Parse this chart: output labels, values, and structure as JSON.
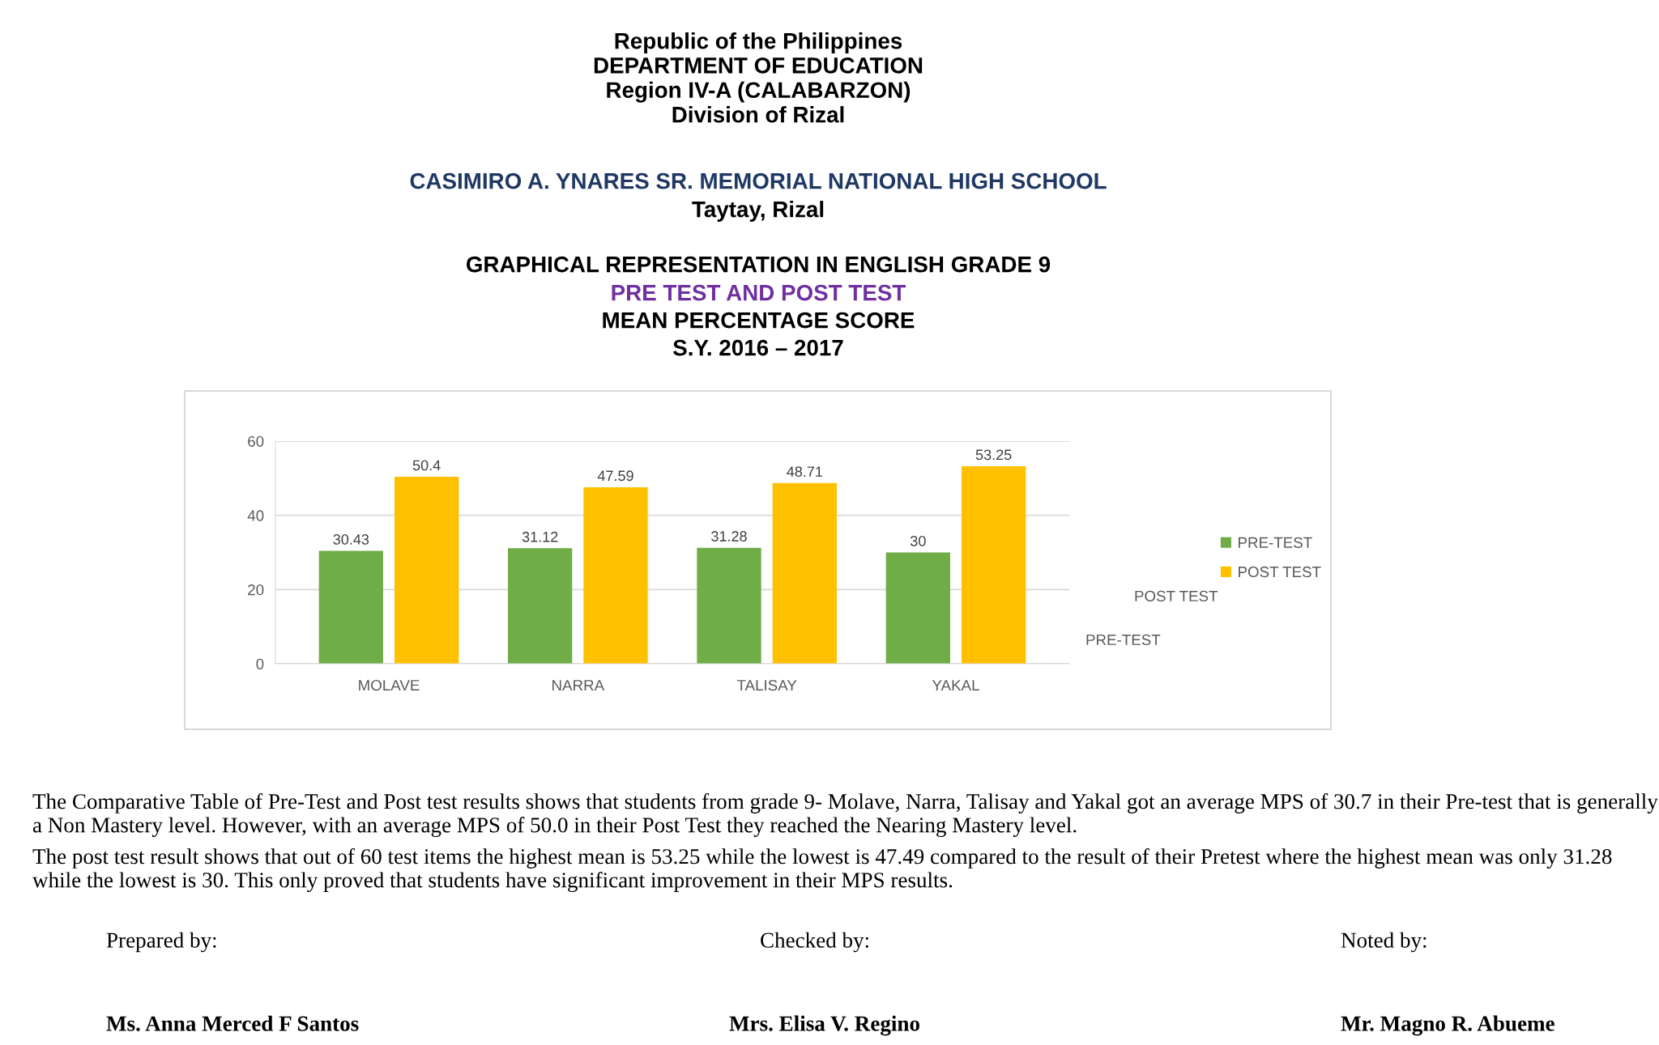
{
  "chart_data": {
    "type": "bar",
    "title": "GRAPHICAL REPRESENTATION IN ENGLISH GRADE 9",
    "subtitle": "PRE TEST AND POST TEST\nMEAN PERCENTAGE SCORE\nS.Y. 2016 – 2017",
    "categories": [
      "MOLAVE",
      "NARRA",
      "TALISAY",
      "YAKAL"
    ],
    "series": [
      {
        "name": "PRE-TEST",
        "color": "#70ad47",
        "values": [
          30.43,
          31.12,
          31.28,
          30
        ]
      },
      {
        "name": "POST TEST",
        "color": "#ffc000",
        "values": [
          50.4,
          47.59,
          48.71,
          53.25
        ]
      }
    ],
    "ylim": [
      0,
      60
    ],
    "yticks": [
      0,
      20,
      40,
      60
    ],
    "grid": "y",
    "legend": "right",
    "data_labels": true,
    "annotations": [
      "Republic of the Philippines\nDEPARTMENT OF EDUCATION\nRegion IV-A (CALABARZON)\nDivision of Rizal",
      "CASIMIRO A. YNARES SR. MEMORIAL NATIONAL HIGH SCHOOL",
      "Taytay, Rizal",
      "The Comparative Table of Pre-Test and Post test results shows that students from grade 9- Molave, Narra, Talisay and Yakal got an average MPS of 30.7 in their Pre-test that is generally a Non Mastery level. However, with an average MPS of 50.0 in their Post Test they reached the Nearing Mastery level.",
      "The post test result shows that out of 60 test items the highest mean is 53.25 while the lowest is 47.49 compared to the result of their Pretest where the highest mean was only 31.28 while the lowest is 30. This only proved that students have significant improvement in their MPS results.",
      "Prepared by:",
      "Checked by:",
      "Noted by:",
      "Ms. Anna Merced F Santos",
      "Mrs. Elisa V. Regino",
      "Mr. Magno R. Abueme",
      "POST TEST",
      "PRE-TEST"
    ]
  }
}
